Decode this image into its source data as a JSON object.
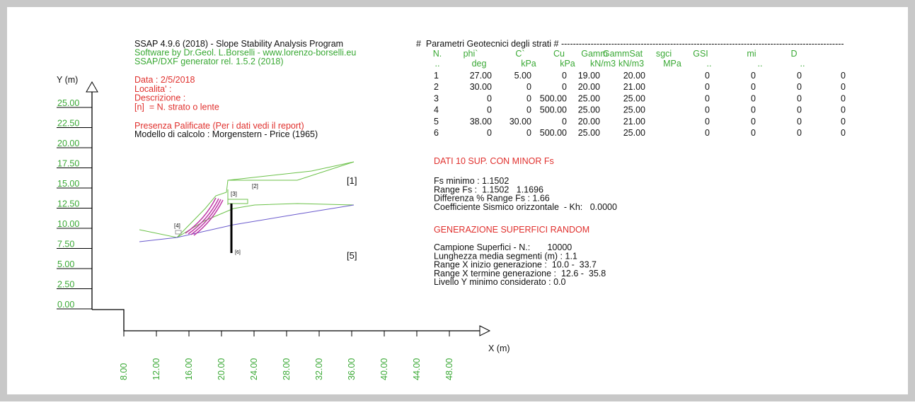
{
  "header": {
    "lines": [
      "SSAP 4.9.6 (2018) - Slope Stability Analysis Program",
      "Software by Dr.Geol. L.Borselli - www.lorenzo-borselli.eu",
      "SSAP/DXF generator rel. 1.5.2 (2018)"
    ]
  },
  "info": {
    "lines": [
      "Data : 2/5/2018",
      "Localita' :",
      "Descrizione :",
      "[n]  = N. strato o lente"
    ],
    "piles": "Presenza Palificate (Per i dati vedi il report)",
    "model": "Modello di calcolo : Morgenstern - Price (1965)"
  },
  "plot": {
    "y_label": "Y (m)",
    "x_label": "X (m)",
    "yticks": [
      "25.00",
      "22.50",
      "20.00",
      "17.50",
      "15.00",
      "12.50",
      "10.00",
      "7.50",
      "5.00",
      "2.50",
      "0.00"
    ],
    "xticks": [
      "8.00",
      "12.00",
      "16.00",
      "20.00",
      "24.00",
      "28.00",
      "32.00",
      "36.00",
      "40.00",
      "44.00",
      "48.00"
    ],
    "strata": [
      "[1]",
      "[2]",
      "[3]",
      "[4]",
      "[5]",
      "[6]"
    ]
  },
  "table": {
    "title": "#  Parametri Geotecnici degli strati # ------------------------------------------------------------------------------------------------",
    "header": [
      "N.",
      "phi`",
      "C`",
      "Cu",
      "Gamm",
      "GammSat",
      "sgci",
      "GSI",
      "mi",
      "D"
    ],
    "units": [
      "..",
      "deg",
      "kPa",
      "kPa",
      "kN/m3",
      "kN/m3",
      "MPa",
      "..",
      "..",
      ".."
    ],
    "rows": [
      [
        "1",
        "27.00",
        "5.00",
        "0",
        "19.00",
        "20.00",
        "0",
        "0",
        "0",
        "0"
      ],
      [
        "2",
        "30.00",
        "0",
        "0",
        "20.00",
        "21.00",
        "0",
        "0",
        "0",
        "0"
      ],
      [
        "3",
        "0",
        "0",
        "500.00",
        "25.00",
        "25.00",
        "0",
        "0",
        "0",
        "0"
      ],
      [
        "4",
        "0",
        "0",
        "500.00",
        "25.00",
        "25.00",
        "0",
        "0",
        "0",
        "0"
      ],
      [
        "5",
        "38.00",
        "30.00",
        "0",
        "20.00",
        "21.00",
        "0",
        "0",
        "0",
        "0"
      ],
      [
        "6",
        "0",
        "0",
        "500.00",
        "25.00",
        "25.00",
        "0",
        "0",
        "0",
        "0"
      ]
    ]
  },
  "results": {
    "title": "DATI 10 SUP. CON MINOR Fs",
    "lines": [
      "Fs minimo : 1.1502",
      "Range Fs :  1.1502   1.1696",
      "Differenza % Range Fs : 1.66",
      "Coefficiente Sismico orizzontale  - Kh:   0.0000"
    ]
  },
  "generation": {
    "title": "GENERAZIONE SUPERFICI RANDOM",
    "lines": [
      "Campione Superfici - N.:       10000",
      "Lunghezza media segmenti (m) : 1.1",
      "Range X inizio generazione :  10.0 -  33.7",
      "Range X termine generazione :  12.6 -  35.8",
      "Livello Y minimo considerato : 0.0"
    ]
  }
}
